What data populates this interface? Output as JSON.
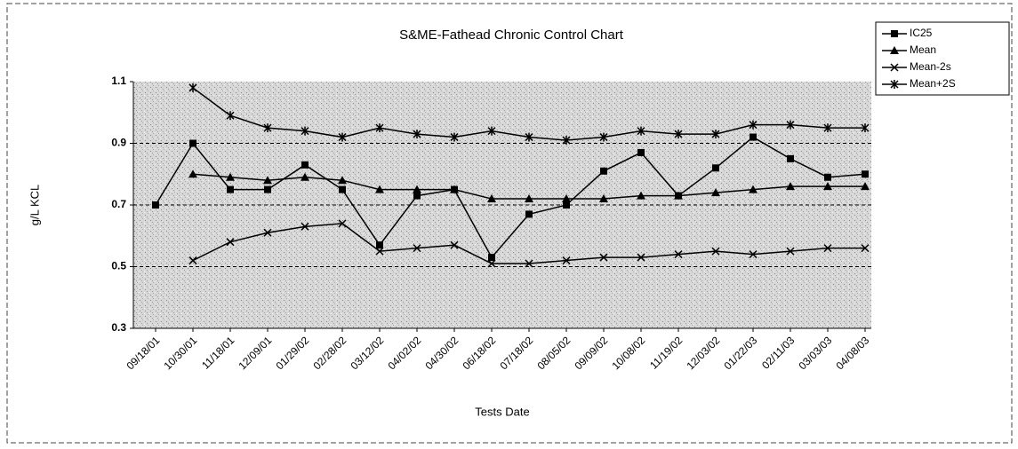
{
  "chart_data": {
    "type": "line",
    "title": "S&ME-Fathead Chronic Control Chart",
    "x_label": "Tests Date",
    "y_label": "g/L KCL",
    "categories": [
      "09/18/01",
      "10/30/01",
      "11/18/01",
      "12/09/01",
      "01/29/02",
      "02/28/02",
      "03/12/02",
      "04/02/02",
      "04/30/02",
      "06/18/02",
      "07/18/02",
      "08/05/02",
      "09/09/02",
      "10/08/02",
      "11/19/02",
      "12/03/02",
      "01/22/03",
      "02/11/03",
      "03/03/03",
      "04/08/03"
    ],
    "series": [
      {
        "name": "IC25",
        "color": "#000000",
        "marker": "square",
        "values": [
          0.7,
          0.9,
          0.75,
          0.75,
          0.83,
          0.75,
          0.57,
          0.73,
          0.75,
          0.53,
          0.67,
          0.7,
          0.81,
          0.87,
          0.73,
          0.82,
          0.92,
          0.85,
          0.79,
          0.8
        ]
      },
      {
        "name": "Mean",
        "color": "#000000",
        "marker": "triangle",
        "values": [
          null,
          0.8,
          0.79,
          0.78,
          0.79,
          0.78,
          0.75,
          0.75,
          0.75,
          0.72,
          0.72,
          0.72,
          0.72,
          0.73,
          0.73,
          0.74,
          0.75,
          0.76,
          0.76,
          0.76
        ]
      },
      {
        "name": "Mean-2s",
        "color": "#000000",
        "marker": "x",
        "values": [
          null,
          0.52,
          0.58,
          0.61,
          0.63,
          0.64,
          0.55,
          0.56,
          0.57,
          0.51,
          0.51,
          0.52,
          0.53,
          0.53,
          0.54,
          0.55,
          0.54,
          0.55,
          0.56,
          0.56
        ]
      },
      {
        "name": "Mean+2S",
        "color": "#000000",
        "marker": "star",
        "values": [
          null,
          1.08,
          0.99,
          0.95,
          0.94,
          0.92,
          0.95,
          0.93,
          0.92,
          0.94,
          0.92,
          0.91,
          0.92,
          0.94,
          0.93,
          0.93,
          0.96,
          0.96,
          0.95,
          0.95
        ]
      }
    ],
    "ylim": [
      0.3,
      1.1
    ],
    "yticks": [
      0.3,
      0.5,
      0.7,
      0.9,
      1.1
    ],
    "grid": true,
    "legend": "top-right"
  }
}
